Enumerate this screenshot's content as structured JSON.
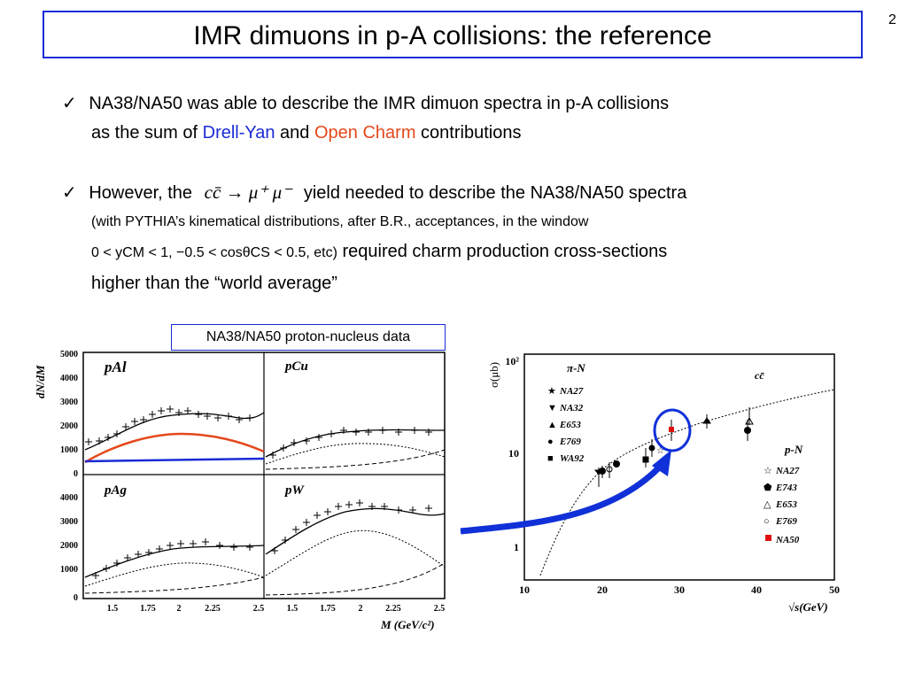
{
  "slide": {
    "number": "2",
    "title": "IMR dimuons in p-A collisions: the reference"
  },
  "bullets": {
    "check": "✓",
    "b1_line1": "NA38/NA50 was able to describe the IMR dimuon spectra in p-A collisions",
    "b1_line2_pre": "as the sum of ",
    "b1_drell": "Drell-Yan",
    "b1_and": " and ",
    "b1_charm": "Open Charm",
    "b1_post": " contributions",
    "b2_pre": "However, the",
    "b2_formula": "cc̄ → μ⁺ μ⁻",
    "b2_post": "yield needed to describe the NA38/NA50 spectra",
    "b2_line2": "(with PYTHIA’s kinematical distributions, after B.R., acceptances, in the window",
    "b2_line3_small": "0 < yCM < 1, −0.5 < cosθCS < 0.5, etc)",
    "b2_line3_big": " required charm production cross-sections",
    "b2_line4": "higher than the “world average”"
  },
  "figure_left": {
    "caption": "NA38/NA50 proton-nucleus data",
    "ylabel": "dN/dM",
    "xlabel": "M (GeV/c²)",
    "panels": [
      "pAl",
      "pCu",
      "pAg",
      "pW"
    ],
    "yticks_top": [
      "5000",
      "4000",
      "3000",
      "2000",
      "1000",
      "0"
    ],
    "yticks_bottom": [
      "4000",
      "3000",
      "2000",
      "1000",
      "0"
    ],
    "xticks": [
      "1.5",
      "1.75",
      "2",
      "2.25",
      "2.5"
    ]
  },
  "figure_right": {
    "ylabel": "σ(μb)",
    "xlabel": "√s(GeV)",
    "yticks": [
      "10²",
      "10",
      "1"
    ],
    "xticks": [
      "10",
      "20",
      "30",
      "40",
      "50"
    ],
    "pi_group": "π-N",
    "p_group": "p-N",
    "cc_label": "cc̄",
    "pi_legend": [
      "NA27",
      "NA32",
      "E653",
      "E769",
      "WA92"
    ],
    "p_legend": [
      "NA27",
      "E743",
      "E653",
      "E769",
      "NA50"
    ]
  },
  "colors": {
    "title_border": "#1a2bd6",
    "drell_yan": "#1a2bd6",
    "open_charm": "#e4481b",
    "na50_point": "#e01010",
    "arrow": "#1030d8"
  }
}
